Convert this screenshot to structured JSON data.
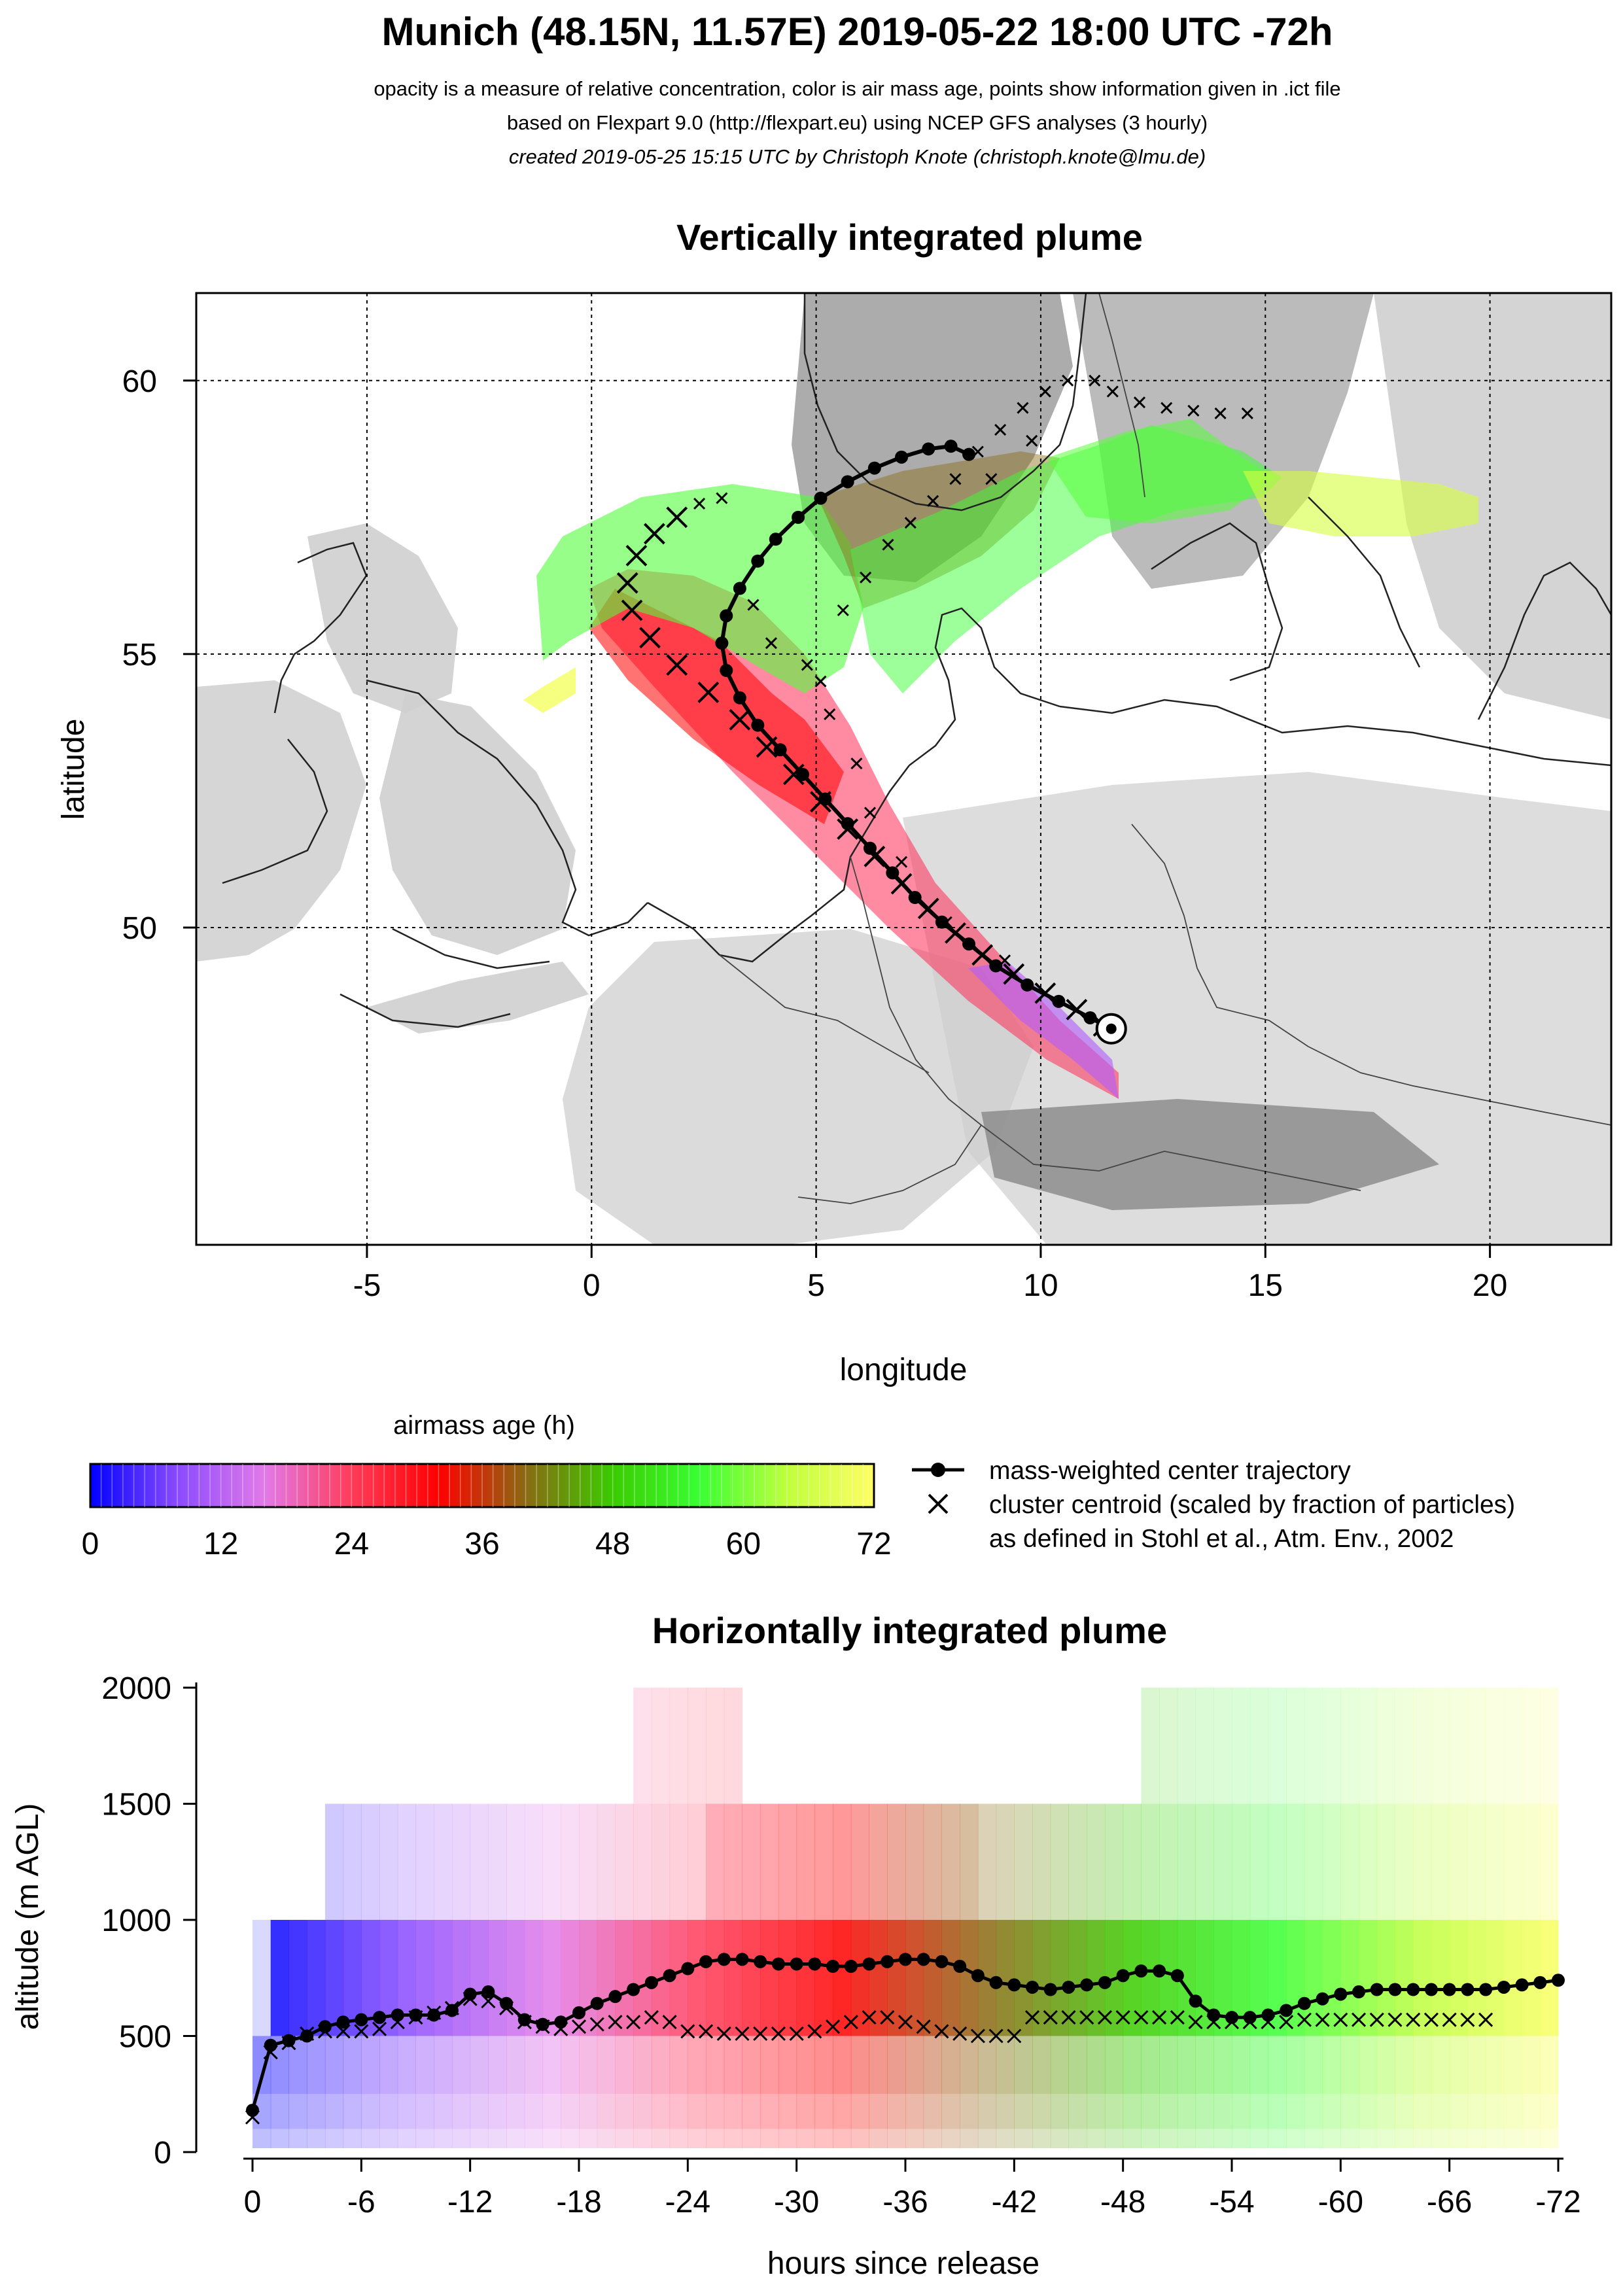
{
  "header": {
    "title": "Munich (48.15N, 11.57E) 2019-05-22 18:00 UTC -72h",
    "line1": "opacity is a measure of relative concentration, color is air mass age, points show information given in .ict file",
    "line2": "based on Flexpart 9.0 (http://flexpart.eu) using NCEP GFS analyses (3 hourly)",
    "line3": "created 2019-05-25 15:15 UTC by Christoph Knote (christoph.knote@lmu.de)"
  },
  "colorbar": {
    "title": "airmass age (h)",
    "ticks": [
      "0",
      "12",
      "24",
      "36",
      "48",
      "60",
      "72"
    ],
    "stops": [
      "#0000ff",
      "#8a4bff",
      "#e27ae8",
      "#ff3c5a",
      "#ff0000",
      "#8a6a12",
      "#3acc00",
      "#39ff33",
      "#bfff3d",
      "#ffff66"
    ]
  },
  "legend": {
    "line_label": "mass-weighted center trajectory",
    "cross_label": "cluster centroid (scaled by fraction of particles)",
    "cross_label2": "as defined in Stohl et al., Atm. Env., 2002"
  },
  "chart_data": [
    {
      "type": "scatter",
      "title": "Vertically integrated plume",
      "xlabel": "longitude",
      "ylabel": "latitude",
      "xlim": [
        -8.8,
        22.7
      ],
      "ylim": [
        44.2,
        61.6
      ],
      "xticks": [
        -5,
        0,
        5,
        10,
        15,
        20
      ],
      "yticks": [
        50,
        55,
        60
      ],
      "grid": true,
      "release_point": {
        "lon": 11.57,
        "lat": 48.15
      },
      "series": [
        {
          "marker": "line-dot",
          "points": [
            [
              11.57,
              48.15
            ],
            [
              11.1,
              48.35
            ],
            [
              10.4,
              48.65
            ],
            [
              9.7,
              48.95
            ],
            [
              9.0,
              49.3
            ],
            [
              8.4,
              49.7
            ],
            [
              7.8,
              50.1
            ],
            [
              7.2,
              50.55
            ],
            [
              6.7,
              51.0
            ],
            [
              6.2,
              51.45
            ],
            [
              5.7,
              51.9
            ],
            [
              5.2,
              52.35
            ],
            [
              4.7,
              52.8
            ],
            [
              4.2,
              53.25
            ],
            [
              3.7,
              53.7
            ],
            [
              3.3,
              54.2
            ],
            [
              3.0,
              54.7
            ],
            [
              2.9,
              55.2
            ],
            [
              3.0,
              55.7
            ],
            [
              3.3,
              56.2
            ],
            [
              3.7,
              56.7
            ],
            [
              4.1,
              57.1
            ],
            [
              4.6,
              57.5
            ],
            [
              5.1,
              57.85
            ],
            [
              5.7,
              58.15
            ],
            [
              6.3,
              58.4
            ],
            [
              6.9,
              58.6
            ],
            [
              7.5,
              58.75
            ],
            [
              8.0,
              58.8
            ],
            [
              8.4,
              58.65
            ]
          ]
        },
        {
          "marker": "cross",
          "points": [
            [
              11.4,
              48.2
            ],
            [
              10.8,
              48.5
            ],
            [
              10.1,
              48.8
            ],
            [
              9.4,
              49.15
            ],
            [
              8.7,
              49.5
            ],
            [
              8.1,
              49.9
            ],
            [
              7.5,
              50.35
            ],
            [
              6.9,
              50.8
            ],
            [
              6.3,
              51.3
            ],
            [
              5.7,
              51.8
            ],
            [
              5.1,
              52.3
            ],
            [
              4.5,
              52.8
            ],
            [
              3.9,
              53.3
            ],
            [
              3.3,
              53.8
            ],
            [
              2.6,
              54.3
            ],
            [
              1.9,
              54.8
            ],
            [
              1.3,
              55.3
            ],
            [
              0.9,
              55.8
            ],
            [
              0.8,
              56.3
            ],
            [
              1.0,
              56.8
            ],
            [
              1.4,
              57.2
            ],
            [
              1.9,
              57.5
            ],
            [
              2.4,
              57.75
            ],
            [
              2.9,
              57.85
            ],
            [
              5.1,
              54.5
            ],
            [
              5.3,
              53.9
            ],
            [
              5.9,
              53.0
            ],
            [
              6.2,
              52.1
            ],
            [
              6.9,
              51.2
            ],
            [
              7.9,
              50.1
            ],
            [
              9.2,
              49.4
            ],
            [
              5.6,
              55.8
            ],
            [
              6.1,
              56.4
            ],
            [
              6.6,
              57.0
            ],
            [
              7.1,
              57.4
            ],
            [
              7.6,
              57.8
            ],
            [
              8.1,
              58.2
            ],
            [
              8.6,
              58.7
            ],
            [
              9.1,
              59.1
            ],
            [
              9.6,
              59.5
            ],
            [
              10.1,
              59.8
            ],
            [
              10.6,
              60.0
            ],
            [
              11.2,
              60.0
            ],
            [
              11.6,
              59.8
            ],
            [
              12.2,
              59.6
            ],
            [
              12.8,
              59.5
            ],
            [
              13.4,
              59.45
            ],
            [
              14.0,
              59.4
            ],
            [
              14.6,
              59.4
            ],
            [
              4.8,
              54.8
            ],
            [
              4.0,
              55.2
            ],
            [
              3.6,
              55.9
            ],
            [
              8.9,
              58.2
            ],
            [
              9.8,
              58.9
            ]
          ]
        }
      ]
    },
    {
      "type": "line",
      "title": "Horizontally integrated plume",
      "xlabel": "hours since release",
      "ylabel": "altitude (m AGL)",
      "xlim": [
        0,
        -72
      ],
      "ylim": [
        0,
        2000
      ],
      "xticks": [
        "0",
        "-6",
        "-12",
        "-18",
        "-24",
        "-30",
        "-36",
        "-42",
        "-48",
        "-54",
        "-60",
        "-66",
        "-72"
      ],
      "yticks": [
        "0",
        "500",
        "1000",
        "1500",
        "2000"
      ],
      "series": [
        {
          "marker": "line-dot",
          "x": [
            0,
            -1,
            -2,
            -3,
            -4,
            -5,
            -6,
            -7,
            -8,
            -9,
            -10,
            -11,
            -12,
            -13,
            -14,
            -15,
            -16,
            -17,
            -18,
            -19,
            -20,
            -21,
            -22,
            -23,
            -24,
            -25,
            -26,
            -27,
            -28,
            -29,
            -30,
            -31,
            -32,
            -33,
            -34,
            -35,
            -36,
            -37,
            -38,
            -39,
            -40,
            -41,
            -42,
            -43,
            -44,
            -45,
            -46,
            -47,
            -48,
            -49,
            -50,
            -51,
            -52,
            -53,
            -54,
            -55,
            -56,
            -57,
            -58,
            -59,
            -60,
            -61,
            -62,
            -63,
            -64,
            -65,
            -66,
            -67,
            -68,
            -69,
            -70,
            -71,
            -72
          ],
          "y": [
            180,
            460,
            480,
            500,
            540,
            560,
            570,
            580,
            590,
            590,
            590,
            610,
            680,
            690,
            640,
            570,
            550,
            560,
            600,
            640,
            670,
            700,
            730,
            760,
            790,
            820,
            830,
            830,
            820,
            810,
            810,
            810,
            800,
            800,
            810,
            820,
            830,
            830,
            820,
            800,
            760,
            730,
            720,
            710,
            700,
            710,
            720,
            730,
            760,
            780,
            780,
            760,
            650,
            590,
            580,
            580,
            590,
            610,
            640,
            660,
            680,
            690,
            700,
            700,
            700,
            700,
            700,
            700,
            700,
            710,
            720,
            730,
            740
          ]
        },
        {
          "marker": "cross",
          "x": [
            0,
            -1,
            -2,
            -3,
            -4,
            -5,
            -6,
            -7,
            -8,
            -9,
            -10,
            -11,
            -12,
            -13,
            -14,
            -15,
            -16,
            -17,
            -18,
            -19,
            -20,
            -21,
            -22,
            -23,
            -24,
            -25,
            -26,
            -27,
            -28,
            -29,
            -30,
            -31,
            -32,
            -33,
            -34,
            -35,
            -36,
            -37,
            -38,
            -39,
            -40,
            -41,
            -42,
            -43,
            -44,
            -45,
            -46,
            -47,
            -48,
            -49,
            -50,
            -51,
            -52,
            -53,
            -54,
            -55,
            -56,
            -57,
            -58,
            -59,
            -60,
            -61,
            -62,
            -63,
            -64,
            -65,
            -66,
            -67,
            -68
          ],
          "y": [
            150,
            430,
            470,
            510,
            520,
            520,
            520,
            530,
            560,
            580,
            600,
            620,
            660,
            650,
            620,
            560,
            540,
            530,
            540,
            550,
            560,
            560,
            580,
            560,
            520,
            520,
            510,
            510,
            510,
            510,
            510,
            520,
            540,
            560,
            580,
            580,
            560,
            540,
            520,
            510,
            500,
            500,
            500,
            580,
            580,
            580,
            580,
            580,
            580,
            580,
            580,
            580,
            560,
            560,
            560,
            560,
            560,
            560,
            570,
            570,
            570,
            570,
            570,
            570,
            570,
            570,
            570,
            570,
            570
          ]
        }
      ]
    }
  ]
}
